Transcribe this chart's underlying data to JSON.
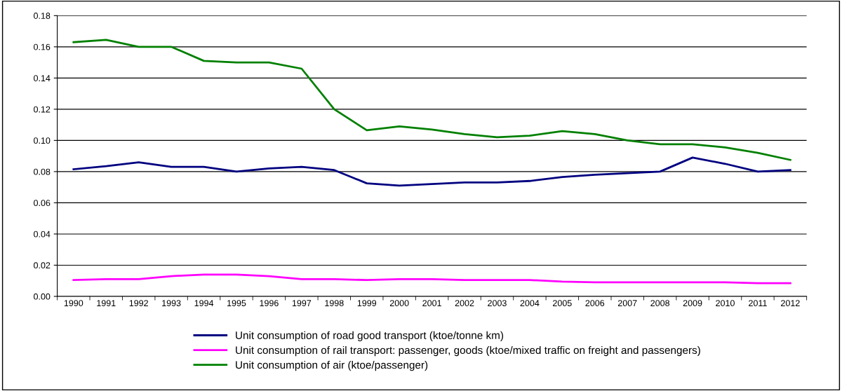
{
  "chart_data": {
    "type": "line",
    "categories": [
      "1990",
      "1991",
      "1992",
      "1993",
      "1994",
      "1995",
      "1996",
      "1997",
      "1998",
      "1999",
      "2000",
      "2001",
      "2002",
      "2003",
      "2004",
      "2005",
      "2006",
      "2007",
      "2008",
      "2009",
      "2010",
      "2011",
      "2012"
    ],
    "series": [
      {
        "name": "Unit consumption of road good transport (ktoe/tonne km)",
        "color": "#000080",
        "values": [
          0.0815,
          0.0835,
          0.086,
          0.083,
          0.083,
          0.08,
          0.082,
          0.083,
          0.081,
          0.0725,
          0.071,
          0.072,
          0.073,
          0.073,
          0.074,
          0.0765,
          0.078,
          0.079,
          0.08,
          0.089,
          0.085,
          0.08,
          0.081
        ]
      },
      {
        "name": "Unit consumption of rail transport: passenger, goods (ktoe/mixed traffic on freight and passengers)",
        "color": "#ff00ff",
        "values": [
          0.0105,
          0.011,
          0.011,
          0.013,
          0.014,
          0.014,
          0.013,
          0.011,
          0.011,
          0.0105,
          0.011,
          0.011,
          0.0105,
          0.0105,
          0.0105,
          0.0095,
          0.009,
          0.009,
          0.009,
          0.009,
          0.009,
          0.0085,
          0.0085
        ]
      },
      {
        "name": "Unit consumption of air (ktoe/passenger)",
        "color": "#008000",
        "values": [
          0.163,
          0.1645,
          0.16,
          0.16,
          0.151,
          0.15,
          0.15,
          0.146,
          0.12,
          0.1065,
          0.109,
          0.107,
          0.104,
          0.102,
          0.103,
          0.106,
          0.104,
          0.1,
          0.0975,
          0.0975,
          0.0955,
          0.092,
          0.0875
        ]
      }
    ],
    "ylim": [
      0,
      0.18
    ],
    "yticks": [
      {
        "value": 0,
        "label": "0.00"
      },
      {
        "value": 0.02,
        "label": "0.02"
      },
      {
        "value": 0.04,
        "label": "0.04"
      },
      {
        "value": 0.06,
        "label": "0.06"
      },
      {
        "value": 0.08,
        "label": "0.08"
      },
      {
        "value": 0.1,
        "label": "0.10"
      },
      {
        "value": 0.12,
        "label": "0.12"
      },
      {
        "value": 0.14,
        "label": "0.14"
      },
      {
        "value": 0.16,
        "label": "0.16"
      },
      {
        "value": 0.18,
        "label": "0.18"
      }
    ],
    "grid": "y",
    "legend": "bottom",
    "marker": "none",
    "line_style": "solid"
  }
}
